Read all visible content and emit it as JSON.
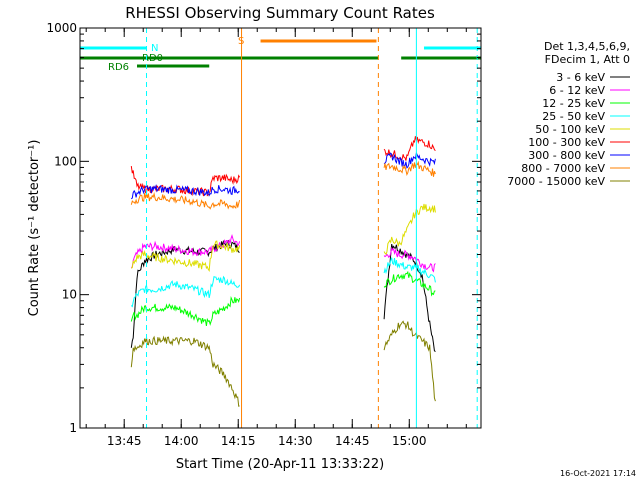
{
  "chart_data": {
    "type": "line",
    "title": "RHESSI Observing Summary Count Rates",
    "xlabel": "Start Time (20-Apr-11 13:33:22)",
    "ylabel": "Count Rate (s⁻¹ detector⁻¹)",
    "y_scale": "log",
    "ylim": [
      1,
      1000
    ],
    "xlim_minutes_after_start": [
      0,
      105.5
    ],
    "x_ticks": [
      {
        "label": "13:45",
        "minute": 11.63
      },
      {
        "label": "14:00",
        "minute": 26.63
      },
      {
        "label": "14:15",
        "minute": 41.63
      },
      {
        "label": "14:30",
        "minute": 56.63
      },
      {
        "label": "14:45",
        "minute": 71.63
      },
      {
        "label": "15:00",
        "minute": 86.63
      }
    ],
    "y_ticks": [
      {
        "label": "1",
        "value": 1
      },
      {
        "label": "10",
        "value": 10
      },
      {
        "label": "100",
        "value": 100
      },
      {
        "label": "1000",
        "value": 1000
      }
    ],
    "legend": {
      "placement": "right",
      "header": [
        "Det 1,3,4,5,6,9,",
        "FDecim 1, Att 0"
      ],
      "entries": [
        {
          "label": "3 - 6 keV",
          "color": "#000000"
        },
        {
          "label": "6 - 12 keV",
          "color": "#ff00ff"
        },
        {
          "label": "12 - 25 keV",
          "color": "#00ff00"
        },
        {
          "label": "25 - 50 keV",
          "color": "#00ffff"
        },
        {
          "label": "50 - 100 keV",
          "color": "#dddd00"
        },
        {
          "label": "100 - 300 keV",
          "color": "#ff0000"
        },
        {
          "label": "300 - 800 keV",
          "color": "#0000ff"
        },
        {
          "label": "800 - 7000 keV",
          "color": "#ff8000"
        },
        {
          "label": "7000 - 15000 keV",
          "color": "#808000"
        }
      ]
    },
    "flags": [
      {
        "label": "N",
        "color": "#00ffff",
        "segments": [
          [
            0,
            17.5
          ],
          [
            90.5,
            105.5
          ]
        ]
      },
      {
        "label": "RD0",
        "color": "#008000",
        "segments": [
          [
            0,
            34
          ],
          [
            0,
            78.5
          ],
          [
            84.5,
            105.5
          ]
        ]
      },
      {
        "label": "RD6",
        "color": "#008000",
        "segments": [
          [
            15,
            34
          ]
        ]
      },
      {
        "label": "S",
        "color": "#ff8000",
        "segments": [
          [
            47.5,
            78
          ]
        ]
      }
    ],
    "vertical_markers": [
      {
        "minute": 17.5,
        "color": "#00ffff",
        "style": "dashed"
      },
      {
        "minute": 42.5,
        "color": "#ff8000",
        "style": "solid"
      },
      {
        "minute": 78.5,
        "color": "#ff8000",
        "style": "dashed"
      },
      {
        "minute": 88.5,
        "color": "#00ffff",
        "style": "solid"
      },
      {
        "minute": 104.5,
        "color": "#00ffff",
        "style": "dashed"
      }
    ],
    "series": [
      {
        "name": "3 - 6 keV",
        "color": "#000000",
        "segments": [
          {
            "t": [
              13.5,
              14,
              15,
              17,
              20,
              25,
              30,
              34,
              35,
              38,
              40,
              42
            ],
            "v": [
              4,
              5,
              14,
              18,
              20,
              22,
              21,
              21,
              22,
              24,
              24,
              22
            ]
          },
          {
            "t": [
              80,
              82,
              84,
              86,
              88,
              90,
              92,
              93.5
            ],
            "v": [
              7,
              24,
              22,
              20,
              18,
              14,
              6,
              3.5
            ]
          }
        ]
      },
      {
        "name": "6 - 12 keV",
        "color": "#ff00ff",
        "segments": [
          {
            "t": [
              13.5,
              14,
              15,
              17,
              20,
              25,
              30,
              34,
              35,
              38,
              40,
              42
            ],
            "v": [
              15,
              18,
              20,
              23,
              23,
              22,
              21,
              21,
              22,
              24,
              26,
              24
            ]
          },
          {
            "t": [
              80,
              82,
              84,
              86,
              88,
              90,
              92,
              93.5
            ],
            "v": [
              19,
              21,
              20,
              20,
              19,
              17,
              16,
              16
            ]
          }
        ]
      },
      {
        "name": "12 - 25 keV",
        "color": "#00ff00",
        "segments": [
          {
            "t": [
              13.5,
              14,
              15,
              17,
              20,
              25,
              30,
              34,
              35,
              38,
              40,
              42
            ],
            "v": [
              6,
              7,
              7,
              8,
              8,
              8,
              7,
              6,
              7,
              8,
              9,
              9
            ]
          },
          {
            "t": [
              80,
              82,
              84,
              86,
              88,
              90,
              92,
              93.5
            ],
            "v": [
              12,
              13,
              14,
              14,
              13,
              12,
              11,
              10
            ]
          }
        ]
      },
      {
        "name": "25 - 50 keV",
        "color": "#00ffff",
        "segments": [
          {
            "t": [
              13.5,
              14,
              15,
              17,
              20,
              25,
              30,
              34,
              35,
              38,
              40,
              42
            ],
            "v": [
              8,
              9,
              10,
              11,
              11,
              12,
              11,
              10,
              13,
              13,
              12,
              12
            ]
          },
          {
            "t": [
              80,
              82,
              84,
              86,
              88,
              90,
              92,
              93.5
            ],
            "v": [
              15,
              18,
              17,
              16,
              16,
              15,
              14,
              13
            ]
          }
        ]
      },
      {
        "name": "50 - 100 keV",
        "color": "#dddd00",
        "segments": [
          {
            "t": [
              13.5,
              14,
              15,
              17,
              20,
              25,
              30,
              34,
              35,
              38,
              40,
              42
            ],
            "v": [
              15,
              17,
              19,
              20,
              19,
              18,
              17,
              16,
              24,
              23,
              22,
              22
            ]
          },
          {
            "t": [
              80,
              82,
              84,
              86,
              88,
              90,
              92,
              93.5
            ],
            "v": [
              20,
              26,
              24,
              30,
              40,
              45,
              45,
              44
            ]
          }
        ]
      },
      {
        "name": "100 - 300 keV",
        "color": "#ff0000",
        "segments": [
          {
            "t": [
              13.5,
              14,
              15,
              17,
              20,
              25,
              30,
              34,
              35,
              38,
              40,
              42
            ],
            "v": [
              90,
              80,
              65,
              62,
              62,
              62,
              60,
              58,
              75,
              75,
              72,
              75
            ]
          },
          {
            "t": [
              80,
              82,
              84,
              86,
              88,
              90,
              92,
              93.5
            ],
            "v": [
              120,
              115,
              110,
              105,
              145,
              140,
              135,
              120
            ]
          }
        ]
      },
      {
        "name": "300 - 800 keV",
        "color": "#0000ff",
        "segments": [
          {
            "t": [
              13.5,
              14,
              15,
              17,
              20,
              25,
              30,
              34,
              35,
              38,
              40,
              42
            ],
            "v": [
              55,
              56,
              58,
              62,
              62,
              61,
              60,
              58,
              62,
              62,
              60,
              62
            ]
          },
          {
            "t": [
              80,
              82,
              84,
              86,
              88,
              90,
              92,
              93.5
            ],
            "v": [
              100,
              110,
              100,
              95,
              110,
              105,
              100,
              98
            ]
          }
        ]
      },
      {
        "name": "800 - 7000 keV",
        "color": "#ff8000",
        "segments": [
          {
            "t": [
              13.5,
              14,
              15,
              17,
              20,
              25,
              30,
              34,
              35,
              38,
              40,
              42
            ],
            "v": [
              48,
              50,
              52,
              54,
              54,
              52,
              50,
              46,
              48,
              48,
              46,
              48
            ]
          },
          {
            "t": [
              80,
              82,
              84,
              86,
              88,
              90,
              92,
              93.5
            ],
            "v": [
              90,
              92,
              88,
              85,
              95,
              90,
              85,
              80
            ]
          }
        ]
      },
      {
        "name": "7000 - 15000 keV",
        "color": "#808000",
        "segments": [
          {
            "t": [
              13.5,
              14,
              15,
              17,
              20,
              25,
              30,
              34,
              35,
              38,
              40,
              42
            ],
            "v": [
              3,
              4,
              4,
              4.5,
              4.5,
              4.5,
              4.5,
              4,
              3,
              2.5,
              2,
              1.5
            ]
          },
          {
            "t": [
              80,
              82,
              84,
              86,
              88,
              90,
              92,
              93.5
            ],
            "v": [
              4,
              5,
              6,
              6,
              5,
              4.5,
              4,
              1.5
            ]
          }
        ]
      }
    ]
  },
  "footer": {
    "timestamp": "16-Oct-2021 17:14"
  }
}
